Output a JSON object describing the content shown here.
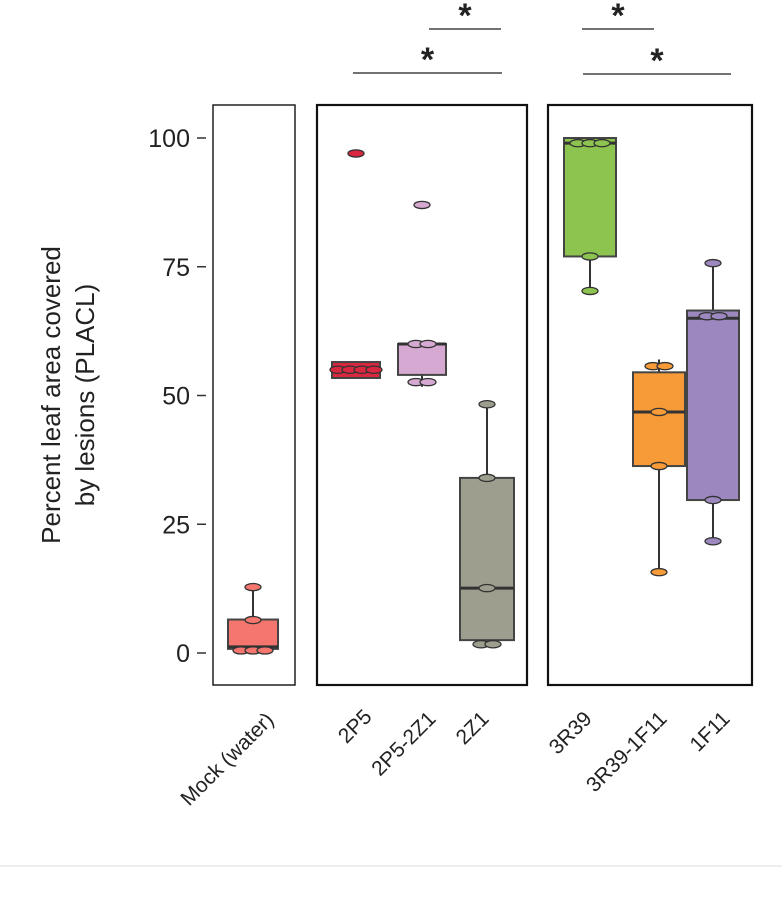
{
  "chart_data": {
    "type": "box",
    "ylabel_line1": "Percent leaf area covered",
    "ylabel_line2": "by lesions (PLACL)",
    "ylim": [
      0,
      100
    ],
    "yticks": [
      "0",
      "25",
      "50",
      "75",
      "100"
    ],
    "grid": false,
    "panels": [
      {
        "groups": [
          0
        ]
      },
      {
        "groups": [
          1,
          2,
          3
        ]
      },
      {
        "groups": [
          4,
          5,
          6
        ]
      }
    ],
    "groups": [
      {
        "name": "Mock (water)",
        "color": "#F4766E",
        "q1": 0.8,
        "median": 1.2,
        "q3": 6.5,
        "whisker_low": 0.5,
        "whisker_high": 12.8,
        "points": [
          0.5,
          0.5,
          0.5,
          6.4,
          12.8
        ]
      },
      {
        "name": "2P5",
        "color": "#D8273F",
        "q1": 53.4,
        "median": 55,
        "q3": 56.5,
        "whisker_low": 53.4,
        "whisker_high": 56.5,
        "points": [
          55,
          55,
          55,
          55,
          97
        ]
      },
      {
        "name": "2P5-2Z1",
        "color": "#D5A9D1",
        "q1": 54,
        "median": 60,
        "q3": 60,
        "whisker_low": 51.7,
        "whisker_high": 60,
        "points": [
          60,
          60,
          52.6,
          52.6,
          87
        ]
      },
      {
        "name": "2Z1",
        "color": "#9E9E8E",
        "q1": 2.5,
        "median": 12.6,
        "q3": 34,
        "whisker_low": 1.7,
        "whisker_high": 48.3,
        "points": [
          1.7,
          1.7,
          12.6,
          34,
          48.3
        ]
      },
      {
        "name": "3R39",
        "color": "#8DC450",
        "q1": 77,
        "median": 99,
        "q3": 100,
        "whisker_low": 70.3,
        "whisker_high": 100,
        "points": [
          99,
          99,
          99,
          77,
          70.3
        ]
      },
      {
        "name": "3R39-1F11",
        "color": "#F79A38",
        "q1": 36.3,
        "median": 46.8,
        "q3": 54.5,
        "whisker_low": 15.7,
        "whisker_high": 57,
        "points": [
          55.7,
          55.7,
          46.8,
          36.3,
          15.7
        ]
      },
      {
        "name": "1F11",
        "color": "#9C87BF",
        "q1": 29.7,
        "median": 65,
        "q3": 66.5,
        "whisker_low": 21.7,
        "whisker_high": 75.7,
        "points": [
          75.7,
          65.4,
          65.4,
          29.7,
          21.7
        ]
      }
    ],
    "significance": [
      {
        "from": "2P5-2Z1",
        "to": "2Z1",
        "label": "*"
      },
      {
        "from": "2P5",
        "to": "2Z1",
        "label": "*"
      },
      {
        "from": "3R39",
        "to": "3R39-1F11",
        "label": "*"
      },
      {
        "from": "3R39",
        "to": "1F11",
        "label": "*"
      }
    ]
  }
}
